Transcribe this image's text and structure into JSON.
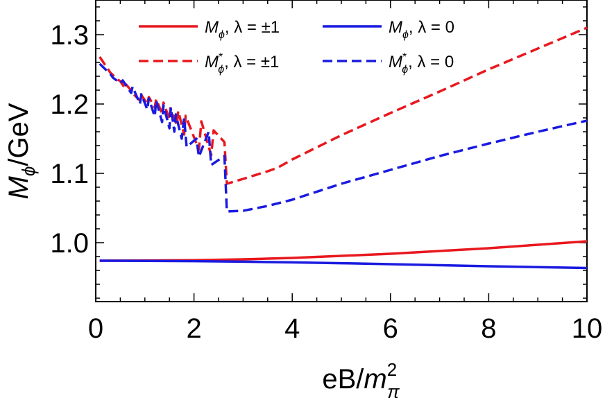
{
  "chart_data": {
    "type": "line",
    "title": "",
    "xlabel": "eB/m²π",
    "xlabel_parts": {
      "base": "eB/",
      "var": "m",
      "sup": "2",
      "sub": "π"
    },
    "ylabel": "Mϕ/GeV",
    "ylabel_parts": {
      "var": "M",
      "sub": "ϕ",
      "rest": "/GeV"
    },
    "xlim": [
      0,
      10
    ],
    "ylim": [
      0.915,
      1.35
    ],
    "xticks": [
      0,
      2,
      4,
      6,
      8,
      10
    ],
    "xtick_labels": [
      "0",
      "2",
      "4",
      "6",
      "8",
      "10"
    ],
    "yticks": [
      1.0,
      1.1,
      1.2,
      1.3
    ],
    "ytick_labels": [
      "1.0",
      "1.1",
      "1.2",
      "1.3"
    ],
    "grid": false,
    "legend_position": "top",
    "colors": {
      "red": "#e8181e",
      "blue": "#1a1ae0"
    },
    "series": [
      {
        "name": "Mϕ, λ = ±1",
        "legend": {
          "var": "M",
          "sub": "ϕ",
          "star": "",
          "rest": ", λ = ±1"
        },
        "color": "#e8181e",
        "dash": "solid",
        "x": [
          0.08,
          1,
          2,
          3,
          4,
          5,
          6,
          7,
          8,
          9,
          10
        ],
        "y": [
          0.974,
          0.9742,
          0.9748,
          0.976,
          0.978,
          0.981,
          0.984,
          0.988,
          0.992,
          0.997,
          1.002
        ]
      },
      {
        "name": "Mϕ, λ = 0",
        "legend": {
          "var": "M",
          "sub": "ϕ",
          "star": "",
          "rest": ", λ = 0"
        },
        "color": "#1a1ae0",
        "dash": "solid",
        "x": [
          0.08,
          1,
          2,
          3,
          4,
          5,
          6,
          7,
          8,
          9,
          10
        ],
        "y": [
          0.974,
          0.9738,
          0.9734,
          0.9726,
          0.9716,
          0.9704,
          0.969,
          0.9675,
          0.966,
          0.9648,
          0.9635
        ]
      },
      {
        "name": "M*ϕ, λ = ±1",
        "legend": {
          "var": "M",
          "sub": "ϕ",
          "star": "*",
          "rest": ", λ = ±1"
        },
        "color": "#e8181e",
        "dash": "dashed",
        "x": [
          0.08,
          0.3,
          0.45,
          0.5,
          0.6,
          0.62,
          0.75,
          0.8,
          0.9,
          0.92,
          1.05,
          1.08,
          1.2,
          1.23,
          1.35,
          1.38,
          1.5,
          1.52,
          1.65,
          1.68,
          1.8,
          1.83,
          2.1,
          2.15,
          2.35,
          2.4,
          2.62,
          2.67,
          3.0,
          3.5,
          3.7,
          4.0,
          5.0,
          6.0,
          7.0,
          8.0,
          9.0,
          10.0
        ],
        "y": [
          1.268,
          1.245,
          1.235,
          1.233,
          1.222,
          1.228,
          1.217,
          1.212,
          1.205,
          1.214,
          1.2,
          1.21,
          1.195,
          1.207,
          1.186,
          1.202,
          1.178,
          1.194,
          1.17,
          1.19,
          1.156,
          1.183,
          1.134,
          1.175,
          1.126,
          1.162,
          1.145,
          1.085,
          1.092,
          1.103,
          1.108,
          1.12,
          1.155,
          1.187,
          1.218,
          1.25,
          1.28,
          1.31
        ]
      },
      {
        "name": "M*ϕ, λ = 0",
        "legend": {
          "var": "M",
          "sub": "ϕ",
          "star": "*",
          "rest": ", λ = 0"
        },
        "color": "#1a1ae0",
        "dash": "dashed",
        "x": [
          0.08,
          0.3,
          0.35,
          0.5,
          0.55,
          0.72,
          0.75,
          0.9,
          0.93,
          1.05,
          1.08,
          1.2,
          1.23,
          1.35,
          1.38,
          1.5,
          1.53,
          1.6,
          1.63,
          1.75,
          1.8,
          1.85,
          2.05,
          2.1,
          2.3,
          2.35,
          2.62,
          2.67,
          3.0,
          3.5,
          4.0,
          5.0,
          6.0,
          7.0,
          8.0,
          9.0,
          10.0
        ],
        "y": [
          1.258,
          1.243,
          1.238,
          1.23,
          1.234,
          1.216,
          1.225,
          1.2,
          1.214,
          1.192,
          1.208,
          1.182,
          1.205,
          1.174,
          1.198,
          1.165,
          1.195,
          1.16,
          1.185,
          1.15,
          1.18,
          1.138,
          1.15,
          1.124,
          1.16,
          1.112,
          1.125,
          1.045,
          1.046,
          1.053,
          1.062,
          1.085,
          1.105,
          1.125,
          1.143,
          1.16,
          1.176
        ]
      }
    ]
  }
}
